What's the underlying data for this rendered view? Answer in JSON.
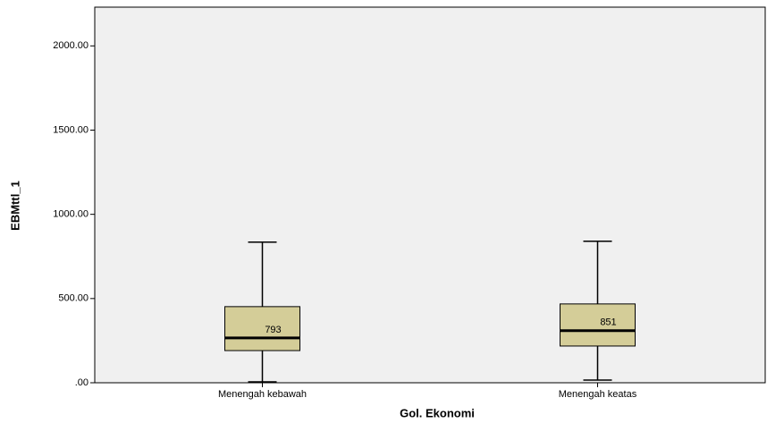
{
  "chart_data": {
    "type": "box",
    "x_label": "Gol. Ekonomi",
    "y_label": "EBMttl_1",
    "categories": [
      "Menengah kebawah",
      "Menengah keatas"
    ],
    "boxes": [
      {
        "whisker_low": 5,
        "q1": 191,
        "median": 266,
        "q3": 452,
        "whisker_high": 835,
        "label": "793"
      },
      {
        "whisker_low": 16,
        "q1": 218,
        "median": 309,
        "q3": 468,
        "whisker_high": 840,
        "label": "851"
      }
    ],
    "color": "#d4cd98",
    "ylim": [
      0,
      2230
    ],
    "yticks": [
      {
        "value": 0,
        "label": ".00"
      },
      {
        "value": 500,
        "label": "500.00"
      },
      {
        "value": 1000,
        "label": "1000.00"
      },
      {
        "value": 1500,
        "label": "1500.00"
      },
      {
        "value": 2000,
        "label": "2000.00"
      }
    ]
  }
}
